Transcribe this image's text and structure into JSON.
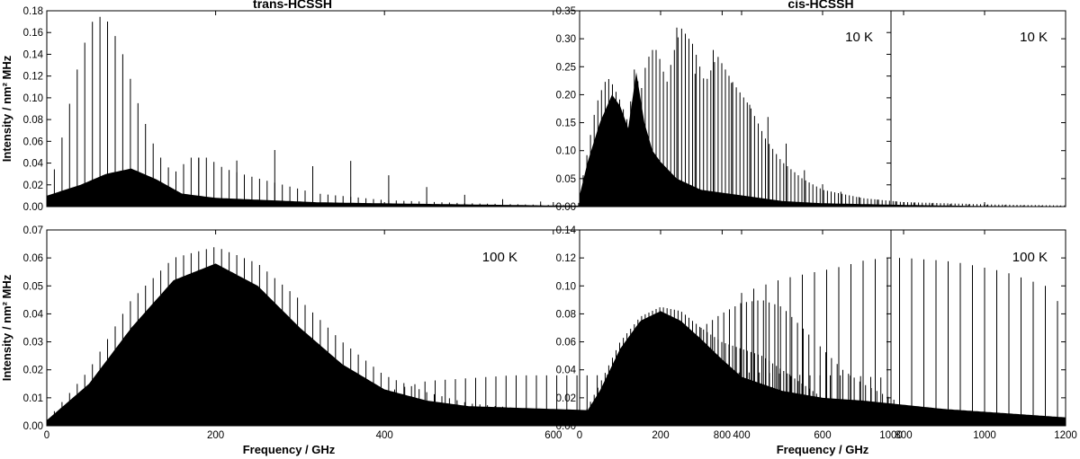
{
  "chart_data": [
    {
      "type": "line",
      "panel": "trans-10K",
      "title": "trans-HCSSH",
      "annotation": "10 K",
      "xlabel": "",
      "ylabel": "Intensity / nm² MHz",
      "xlim": [
        0,
        1000
      ],
      "ylim": [
        0,
        0.18
      ],
      "xticks": [
        "0",
        "200",
        "400",
        "600",
        "800",
        "1000"
      ],
      "yticks": [
        "0.00",
        "0.02",
        "0.04",
        "0.06",
        "0.08",
        "0.10",
        "0.12",
        "0.14",
        "0.16",
        "0.18"
      ],
      "series": [
        {
          "kind": "stick-envelope",
          "color": "#000000",
          "spacing": 9,
          "x": [
            0,
            20,
            40,
            55,
            65,
            75,
            90,
            110,
            130,
            150,
            170,
            190,
            210,
            240,
            280,
            320,
            400,
            500,
            600,
            700,
            800,
            1000
          ],
          "y": [
            0.005,
            0.07,
            0.14,
            0.172,
            0.175,
            0.168,
            0.14,
            0.09,
            0.05,
            0.03,
            0.045,
            0.045,
            0.035,
            0.028,
            0.02,
            0.012,
            0.006,
            0.003,
            0.0015,
            0.001,
            0.0005,
            0.0002
          ]
        },
        {
          "kind": "stick-envelope",
          "color": "#000000",
          "spacing": 45,
          "x": [
            180,
            200,
            240,
            260,
            290,
            320,
            345,
            370,
            400,
            450,
            500,
            550,
            600,
            650,
            700,
            800,
            900,
            1000
          ],
          "y": [
            0.045,
            0.046,
            0.04,
            0.054,
            0.048,
            0.035,
            0.045,
            0.04,
            0.03,
            0.018,
            0.01,
            0.006,
            0.004,
            0.003,
            0.002,
            0.001,
            0.0006,
            0.0003
          ]
        },
        {
          "kind": "dense-fill",
          "color": "#000000",
          "x": [
            0,
            40,
            70,
            100,
            130,
            160,
            200,
            260,
            320,
            400,
            500,
            600,
            800,
            1000
          ],
          "y": [
            0.01,
            0.02,
            0.03,
            0.035,
            0.025,
            0.012,
            0.008,
            0.006,
            0.004,
            0.003,
            0.002,
            0.001,
            0.0005,
            0.0002
          ]
        }
      ]
    },
    {
      "type": "line",
      "panel": "cis-10K",
      "title": "cis-HCSSH",
      "annotation": "10 K",
      "xlabel": "",
      "ylabel": "",
      "xlim": [
        0,
        1200
      ],
      "ylim": [
        0,
        0.35
      ],
      "xticks": [
        "0",
        "200",
        "400",
        "600",
        "800",
        "1000",
        "1200"
      ],
      "yticks": [
        "0.00",
        "0.05",
        "0.10",
        "0.15",
        "0.20",
        "0.25",
        "0.30",
        "0.35"
      ],
      "series": [
        {
          "kind": "stick-envelope",
          "color": "#000000",
          "spacing": 9,
          "x": [
            0,
            20,
            40,
            60,
            70,
            80,
            100,
            120,
            135,
            140,
            150,
            165,
            180,
            190,
            200,
            215,
            230,
            250,
            280,
            310,
            340,
            380,
            420,
            460,
            500,
            550,
            600,
            700,
            800,
            1000,
            1200
          ],
          "y": [
            0.02,
            0.1,
            0.18,
            0.22,
            0.23,
            0.22,
            0.19,
            0.15,
            0.245,
            0.24,
            0.2,
            0.26,
            0.28,
            0.28,
            0.26,
            0.22,
            0.27,
            0.32,
            0.29,
            0.22,
            0.27,
            0.22,
            0.18,
            0.12,
            0.08,
            0.05,
            0.03,
            0.015,
            0.008,
            0.004,
            0.002
          ]
        },
        {
          "kind": "stick-envelope",
          "color": "#000000",
          "spacing": 45,
          "x": [
            240,
            260,
            300,
            330,
            360,
            400,
            450,
            480,
            520,
            560,
            600,
            650,
            700,
            800,
            900,
            1000,
            1200
          ],
          "y": [
            0.32,
            0.3,
            0.2,
            0.28,
            0.24,
            0.19,
            0.17,
            0.15,
            0.1,
            0.06,
            0.04,
            0.025,
            0.015,
            0.008,
            0.005,
            0.003,
            0.001
          ]
        },
        {
          "kind": "dense-fill",
          "color": "#000000",
          "x": [
            0,
            20,
            50,
            80,
            100,
            120,
            140,
            160,
            180,
            200,
            240,
            300,
            400,
            500,
            600,
            800,
            1000,
            1200
          ],
          "y": [
            0.02,
            0.08,
            0.15,
            0.2,
            0.18,
            0.14,
            0.24,
            0.15,
            0.1,
            0.08,
            0.05,
            0.03,
            0.02,
            0.01,
            0.006,
            0.003,
            0.001,
            0.0005
          ]
        }
      ]
    },
    {
      "type": "line",
      "panel": "trans-100K",
      "title": "",
      "annotation": "100 K",
      "xlabel": "Frequency / GHz",
      "ylabel": "Intensity / nm² MHz",
      "xlim": [
        0,
        1000
      ],
      "ylim": [
        0,
        0.07
      ],
      "xticks": [
        "0",
        "200",
        "400",
        "600",
        "800",
        "1000"
      ],
      "yticks": [
        "0.00",
        "0.01",
        "0.02",
        "0.03",
        "0.04",
        "0.05",
        "0.06",
        "0.07"
      ],
      "series": [
        {
          "kind": "stick-envelope",
          "color": "#000000",
          "spacing": 9,
          "x": [
            0,
            50,
            100,
            150,
            200,
            250,
            300,
            350,
            400,
            450,
            500,
            600,
            700,
            800,
            900,
            1000
          ],
          "y": [
            0.002,
            0.02,
            0.045,
            0.06,
            0.064,
            0.058,
            0.045,
            0.03,
            0.018,
            0.012,
            0.008,
            0.005,
            0.004,
            0.003,
            0.002,
            0.001
          ]
        },
        {
          "kind": "stick-envelope",
          "color": "#000000",
          "spacing": 12,
          "x": [
            400,
            450,
            500,
            550,
            600,
            650,
            700,
            750,
            800,
            850,
            900,
            950,
            1000
          ],
          "y": [
            0.012,
            0.016,
            0.017,
            0.018,
            0.018,
            0.018,
            0.019,
            0.019,
            0.019,
            0.019,
            0.018,
            0.018,
            0.017
          ]
        },
        {
          "kind": "dense-fill",
          "color": "#000000",
          "x": [
            0,
            50,
            100,
            150,
            200,
            250,
            300,
            350,
            400,
            450,
            500,
            600,
            700,
            800,
            900,
            1000
          ],
          "y": [
            0.002,
            0.015,
            0.035,
            0.052,
            0.058,
            0.05,
            0.035,
            0.022,
            0.013,
            0.009,
            0.007,
            0.006,
            0.005,
            0.005,
            0.005,
            0.005
          ]
        }
      ]
    },
    {
      "type": "line",
      "panel": "cis-100K",
      "title": "",
      "annotation": "100 K",
      "xlabel": "Frequency / GHz",
      "ylabel": "",
      "xlim": [
        0,
        1200
      ],
      "ylim": [
        0,
        0.14
      ],
      "xticks": [
        "0",
        "200",
        "400",
        "600",
        "800",
        "1000",
        "1200"
      ],
      "yticks": [
        "0.00",
        "0.02",
        "0.04",
        "0.06",
        "0.08",
        "0.10",
        "0.12",
        "0.14"
      ],
      "series": [
        {
          "kind": "stick-envelope",
          "color": "#000000",
          "spacing": 9,
          "x": [
            0,
            50,
            100,
            150,
            200,
            250,
            300,
            350,
            400,
            450,
            500,
            550,
            600,
            700,
            800,
            900,
            1000,
            1100,
            1200
          ],
          "y": [
            0.002,
            0.03,
            0.06,
            0.078,
            0.085,
            0.082,
            0.07,
            0.06,
            0.055,
            0.05,
            0.04,
            0.03,
            0.02,
            0.012,
            0.008,
            0.006,
            0.004,
            0.003,
            0.002
          ]
        },
        {
          "kind": "stick-envelope",
          "color": "#000000",
          "spacing": 14,
          "x": [
            300,
            350,
            400,
            450,
            500,
            550,
            600,
            650,
            700,
            800,
            900,
            1000,
            1100,
            1200
          ],
          "y": [
            0.07,
            0.08,
            0.088,
            0.09,
            0.085,
            0.07,
            0.055,
            0.04,
            0.03,
            0.015,
            0.008,
            0.004,
            0.002,
            0.001
          ]
        },
        {
          "kind": "stick-envelope",
          "color": "#000000",
          "spacing": 30,
          "x": [
            400,
            450,
            500,
            550,
            600,
            650,
            700,
            750,
            800,
            850,
            900,
            950,
            1000,
            1050,
            1100,
            1150,
            1200
          ],
          "y": [
            0.095,
            0.1,
            0.105,
            0.108,
            0.111,
            0.114,
            0.118,
            0.12,
            0.12,
            0.119,
            0.118,
            0.116,
            0.113,
            0.11,
            0.105,
            0.1,
            0.082
          ]
        },
        {
          "kind": "dense-fill",
          "color": "#000000",
          "x": [
            0,
            50,
            100,
            150,
            200,
            250,
            300,
            350,
            400,
            450,
            500,
            600,
            700,
            800,
            900,
            1000,
            1100,
            1200
          ],
          "y": [
            0.002,
            0.025,
            0.055,
            0.075,
            0.082,
            0.075,
            0.062,
            0.048,
            0.035,
            0.03,
            0.025,
            0.02,
            0.018,
            0.015,
            0.012,
            0.01,
            0.008,
            0.006
          ]
        }
      ]
    }
  ]
}
